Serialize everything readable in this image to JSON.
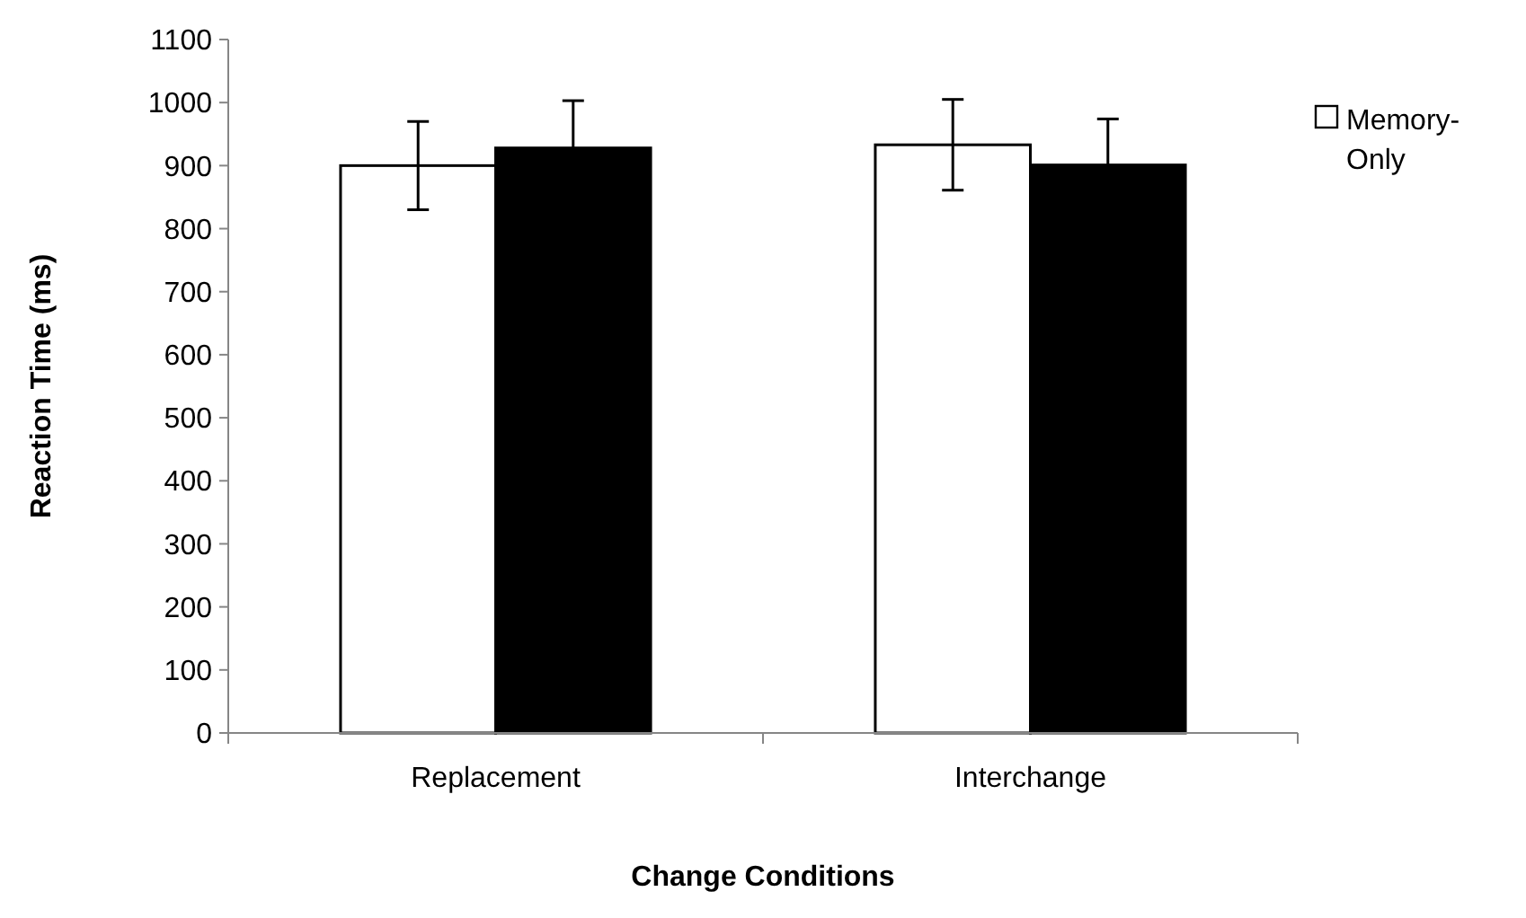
{
  "chart_data": {
    "type": "bar",
    "xlabel": "Change Conditions",
    "ylabel": "Reaction Time (ms)",
    "categories": [
      "Replacement",
      "Interchange"
    ],
    "series": [
      {
        "name": "Memory-Only",
        "color": "#ffffff",
        "values": [
          900,
          933
        ],
        "errors": [
          70,
          72
        ]
      },
      {
        "color": "#000000",
        "values": [
          928,
          901
        ],
        "errors": [
          75,
          73
        ]
      }
    ],
    "ylim": [
      0,
      1100
    ],
    "yticks": [
      0,
      100,
      200,
      300,
      400,
      500,
      600,
      700,
      800,
      900,
      1000,
      1100
    ],
    "grid": false,
    "legend": "right"
  }
}
